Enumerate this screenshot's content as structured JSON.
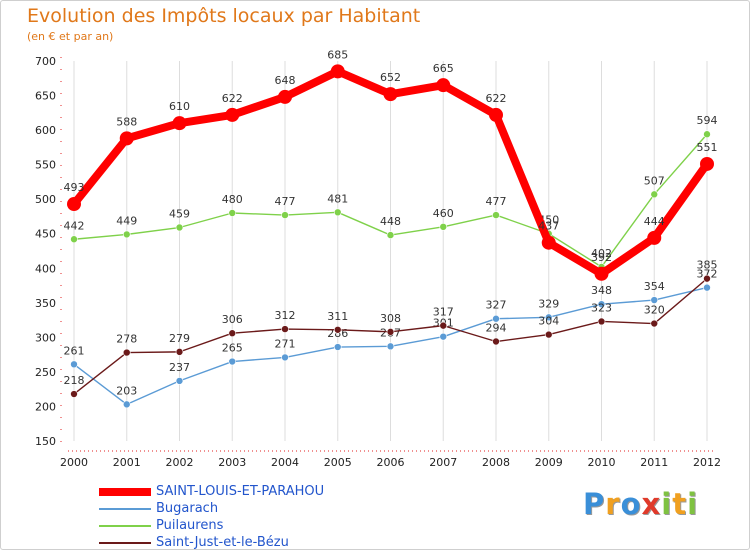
{
  "chart_data": {
    "type": "line",
    "title": "Evolution des Impôts locaux par Habitant",
    "subtitle": "(en € et par an)",
    "xlabel": "",
    "ylabel": "",
    "x": [
      "2000",
      "2001",
      "2002",
      "2003",
      "2004",
      "2005",
      "2006",
      "2007",
      "2008",
      "2009",
      "2010",
      "2011",
      "2012"
    ],
    "ylim": [
      150,
      700
    ],
    "yticks": [
      150,
      200,
      250,
      300,
      350,
      400,
      450,
      500,
      550,
      600,
      650,
      700
    ],
    "series": [
      {
        "name": "SAINT-LOUIS-ET-PARAHOU",
        "color": "#ff0000",
        "bold": true,
        "values": [
          493,
          588,
          610,
          622,
          648,
          685,
          652,
          665,
          622,
          437,
          392,
          444,
          551
        ]
      },
      {
        "name": "Bugarach",
        "color": "#5b9bd5",
        "bold": false,
        "values": [
          261,
          203,
          237,
          265,
          271,
          286,
          287,
          301,
          327,
          329,
          348,
          354,
          372
        ]
      },
      {
        "name": "Puilaurens",
        "color": "#7fd14a",
        "bold": false,
        "values": [
          442,
          449,
          459,
          480,
          477,
          481,
          448,
          460,
          477,
          450,
          402,
          507,
          594
        ]
      },
      {
        "name": "Saint-Just-et-le-Bézu",
        "color": "#6b1a1a",
        "bold": false,
        "values": [
          218,
          278,
          279,
          306,
          312,
          311,
          308,
          317,
          294,
          304,
          323,
          320,
          385
        ]
      }
    ],
    "legend_position": "bottom-left"
  },
  "brand": {
    "letters": [
      "P",
      "r",
      "o",
      "x",
      "i",
      "t",
      "i"
    ],
    "colors": [
      "#3a8fd8",
      "#f0a020",
      "#3a8fd8",
      "#e03a2a",
      "#7fc241",
      "#f0a020",
      "#7fc241"
    ]
  }
}
